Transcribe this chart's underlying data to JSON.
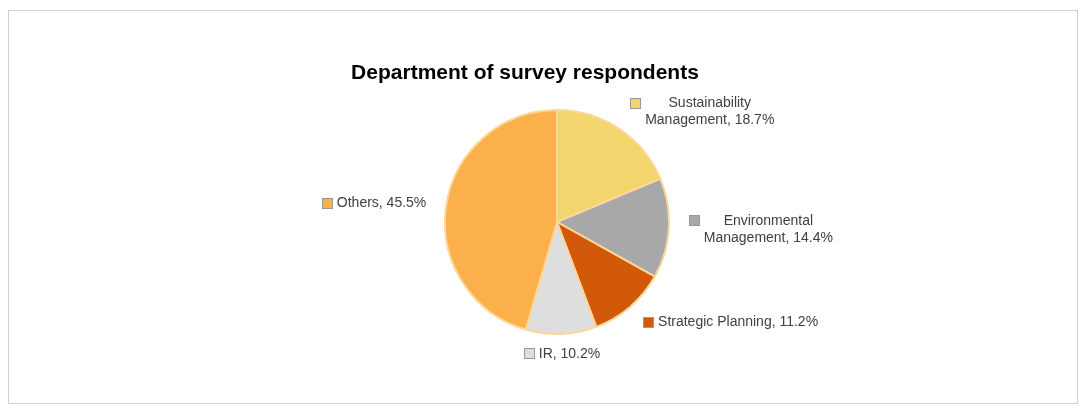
{
  "chart_data": {
    "type": "pie",
    "title": "Department of survey respondents",
    "categories": [
      "Sustainability Management",
      "Environmental Management",
      "Strategic Planning",
      "IR",
      "Others"
    ],
    "values": [
      18.7,
      14.4,
      11.2,
      10.2,
      45.5
    ],
    "value_labels": [
      "18.7%",
      "14.4%",
      "11.2%",
      "10.2%",
      "45.5%"
    ],
    "colors": [
      "#f3d56e",
      "#a8a8a8",
      "#d2580a",
      "#dedede",
      "#fcb04c"
    ],
    "legend": "right"
  }
}
